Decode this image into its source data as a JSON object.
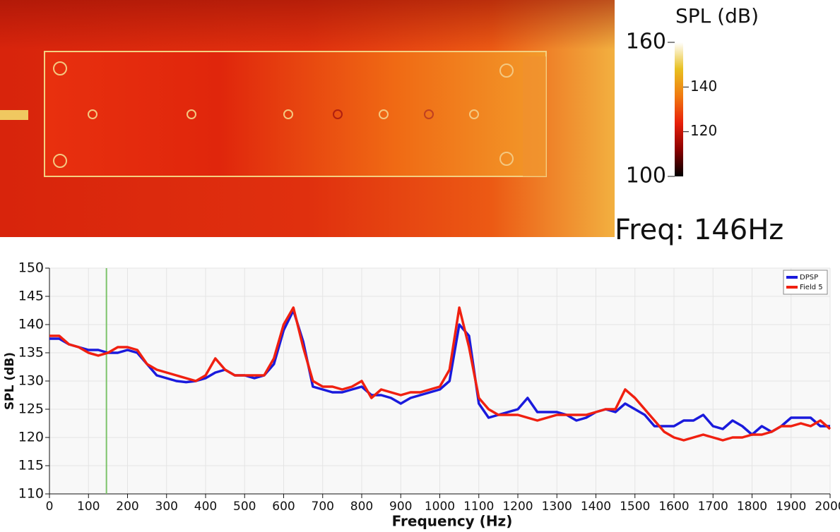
{
  "heatmap": {
    "label": "Freq: 146Hz",
    "colorbar": {
      "title": "SPL (dB)",
      "lim": [
        100,
        160
      ],
      "ticks": [
        100,
        120,
        140,
        160
      ],
      "colors": [
        "#000000",
        "#8b0000",
        "#e8200a",
        "#f07a10",
        "#e8c020",
        "#ffffff"
      ]
    }
  },
  "chart_data": {
    "type": "line",
    "xlabel": "Frequency (Hz)",
    "ylabel": "SPL (dB)",
    "xlim": [
      0,
      2000
    ],
    "xticks": [
      0,
      100,
      200,
      300,
      400,
      500,
      600,
      700,
      800,
      900,
      1000,
      1100,
      1200,
      1300,
      1400,
      1500,
      1600,
      1700,
      1800,
      1900,
      2000
    ],
    "ylim": [
      110,
      150
    ],
    "yticks": [
      110,
      115,
      120,
      125,
      130,
      135,
      140,
      145,
      150
    ],
    "grid": true,
    "legend": "upper right",
    "cursor_x": 146,
    "cursor_color": "#7cc36a",
    "x": [
      0,
      25,
      50,
      75,
      100,
      125,
      150,
      175,
      200,
      225,
      250,
      275,
      300,
      325,
      350,
      375,
      400,
      425,
      450,
      475,
      500,
      525,
      550,
      575,
      600,
      625,
      650,
      675,
      700,
      725,
      750,
      775,
      800,
      825,
      850,
      875,
      900,
      925,
      950,
      975,
      1000,
      1025,
      1050,
      1075,
      1100,
      1125,
      1150,
      1175,
      1200,
      1225,
      1250,
      1275,
      1300,
      1325,
      1350,
      1375,
      1400,
      1425,
      1450,
      1475,
      1500,
      1525,
      1550,
      1575,
      1600,
      1625,
      1650,
      1675,
      1700,
      1725,
      1750,
      1775,
      1800,
      1825,
      1850,
      1875,
      1900,
      1925,
      1950,
      1975,
      2000
    ],
    "series": [
      {
        "name": "DPSP",
        "color": "#1a1adc",
        "values": [
          137.5,
          137.5,
          136.5,
          136,
          135.5,
          135.5,
          135,
          135,
          135.5,
          135,
          133,
          131,
          130.5,
          130,
          129.8,
          130,
          130.5,
          131.5,
          132,
          131,
          131,
          130.5,
          131,
          133,
          139,
          142.5,
          137,
          129,
          128.5,
          128,
          128,
          128.5,
          129,
          127.5,
          127.5,
          127,
          126,
          127,
          127.5,
          128,
          128.5,
          130,
          140,
          138,
          126,
          123.5,
          124,
          124.5,
          125,
          127,
          124.5,
          124.5,
          124.5,
          124,
          123,
          123.5,
          124.5,
          125,
          124.5,
          126,
          125,
          124,
          122,
          122,
          122,
          123,
          123,
          124,
          122,
          121.5,
          123,
          122,
          120.5,
          122,
          121,
          122,
          123.5,
          123.5,
          123.5,
          122,
          122
        ]
      },
      {
        "name": "Field 5",
        "color": "#f02010",
        "values": [
          138,
          138,
          136.5,
          136,
          135,
          134.5,
          135,
          136,
          136,
          135.5,
          133,
          132,
          131.5,
          131,
          130.5,
          130,
          131,
          134,
          132,
          131,
          131,
          131,
          131,
          134,
          140,
          143,
          136,
          130,
          129,
          129,
          128.5,
          129,
          130,
          127,
          128.5,
          128,
          127.5,
          128,
          128,
          128.5,
          129,
          132,
          143,
          136,
          127,
          125,
          124,
          124,
          124,
          123.5,
          123,
          123.5,
          124,
          124,
          124,
          124,
          124.5,
          125,
          125,
          128.5,
          127,
          125,
          123,
          121,
          120,
          119.5,
          120,
          120.5,
          120,
          119.5,
          120,
          120,
          120.5,
          120.5,
          121,
          122,
          122,
          122.5,
          122,
          123,
          121.5
        ]
      }
    ]
  }
}
